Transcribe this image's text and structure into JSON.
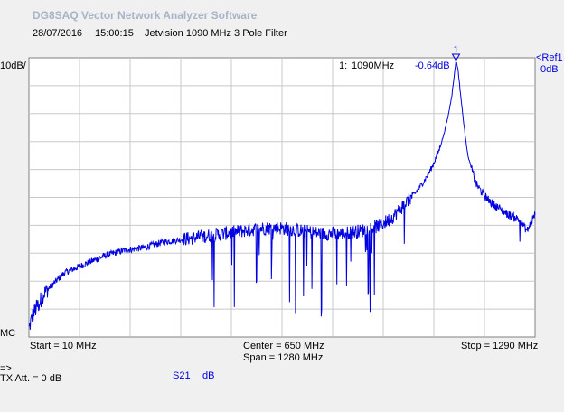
{
  "app": {
    "title": "DG8SAQ Vector Network Analyzer Software"
  },
  "header": {
    "date": "28/07/2016",
    "time": "15:00:15",
    "description": "Jetvision 1090 MHz 3 Pole Filter"
  },
  "trace": {
    "scale_label": "10dB/",
    "ref_label": "<Ref1",
    "ref_value": "0dB",
    "mc_label": "MC",
    "param": "S21",
    "unit": "dB",
    "color": "#0000e0"
  },
  "marker": {
    "number": "1",
    "readout_label": "1:",
    "frequency": "1090MHz",
    "value": "-0.64dB"
  },
  "footer": {
    "start": "Start = 10 MHz",
    "center": "Center = 650 MHz",
    "span": "Span = 1280 MHz",
    "stop": "Stop = 1290 MHz",
    "arrow": "=>",
    "tx_att": "TX Att.  = 0 dB"
  },
  "chart_data": {
    "type": "line",
    "x_unit": "MHz",
    "y_unit": "dB",
    "xlim": [
      10,
      1290
    ],
    "ylim": [
      -100,
      0
    ],
    "grid": true,
    "x_divisions": 10,
    "y_divisions": 10,
    "series": [
      {
        "x": [
          10,
          20,
          50,
          100,
          150,
          200,
          250,
          300,
          350,
          400,
          450,
          500,
          550,
          600,
          650,
          700,
          750,
          800,
          850,
          900,
          930,
          950,
          970,
          990,
          1010,
          1030,
          1050,
          1060,
          1070,
          1080,
          1085,
          1090,
          1095,
          1100,
          1110,
          1120,
          1140,
          1160,
          1180,
          1200,
          1220,
          1250,
          1270,
          1290
        ],
        "y": [
          -97,
          -92,
          -84,
          -77,
          -74,
          -71,
          -69,
          -68,
          -66,
          -65,
          -64,
          -63,
          -62,
          -61,
          -61,
          -62,
          -63,
          -63,
          -62,
          -60,
          -57,
          -54,
          -51,
          -48,
          -44,
          -39,
          -32,
          -27,
          -21,
          -13,
          -7,
          -1,
          -4,
          -11,
          -24,
          -35,
          -45,
          -49,
          -52,
          -54,
          -56,
          -58,
          -62,
          -56
        ]
      }
    ]
  }
}
